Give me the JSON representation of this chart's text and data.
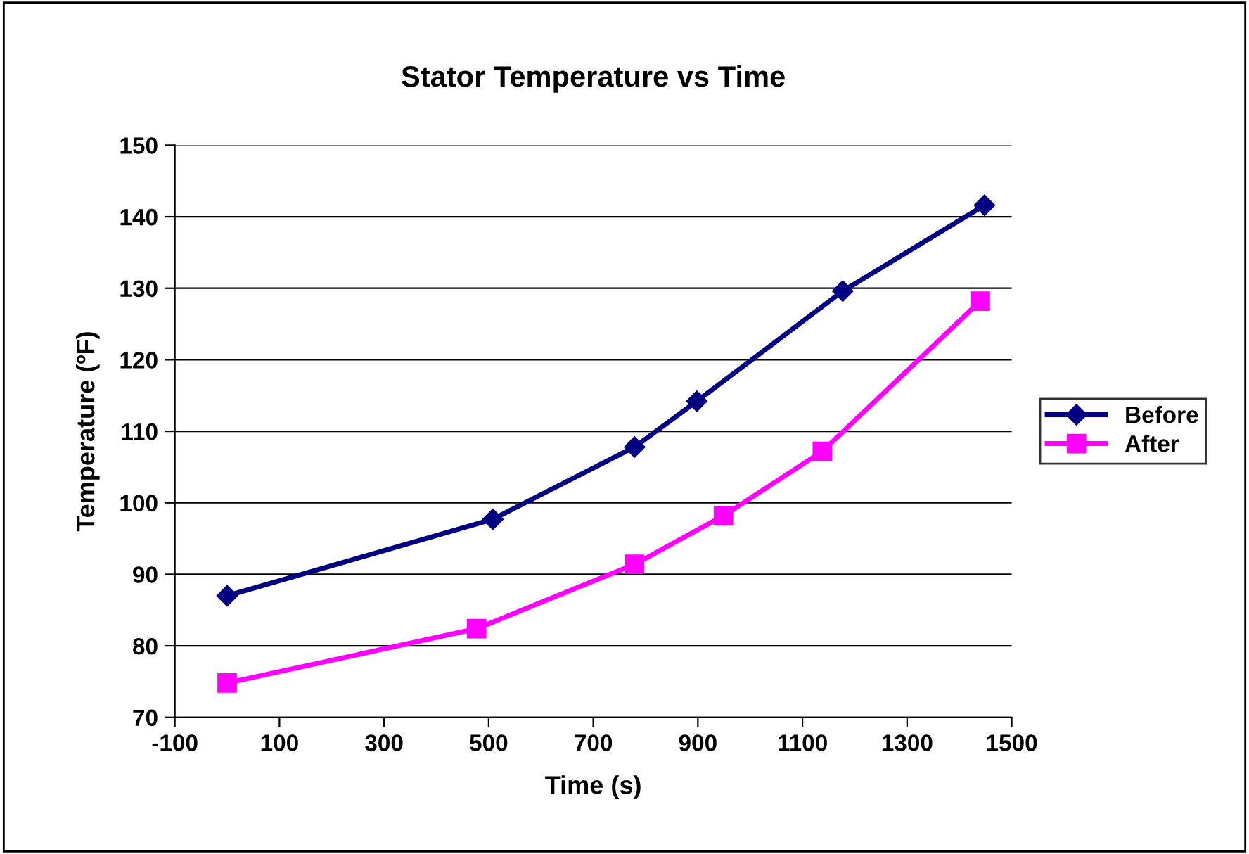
{
  "chart_data": {
    "type": "line",
    "title": "Stator Temperature vs Time",
    "xlabel": "Time (s)",
    "ylabel": "Temperature (ºF)",
    "series": [
      {
        "name": "Before",
        "color": "#000080",
        "marker": "diamond",
        "x": [
          0,
          508,
          779,
          898,
          1177,
          1448
        ],
        "values": [
          87,
          97.7,
          107.8,
          114.2,
          129.6,
          141.6
        ]
      },
      {
        "name": "After",
        "color": "#ff00ff",
        "marker": "square",
        "x": [
          0,
          477,
          779,
          949,
          1138,
          1440
        ],
        "values": [
          74.8,
          82.4,
          91.4,
          98.2,
          107.2,
          128.2
        ]
      }
    ],
    "xlim": [
      -100,
      1500
    ],
    "xticks": [
      -100,
      100,
      300,
      500,
      700,
      900,
      1100,
      1300,
      1500
    ],
    "ylim": [
      70,
      150
    ],
    "yticks": [
      70,
      80,
      90,
      100,
      110,
      120,
      130,
      140,
      150
    ],
    "grid": "y",
    "legend": "right",
    "line_style": "solid"
  }
}
